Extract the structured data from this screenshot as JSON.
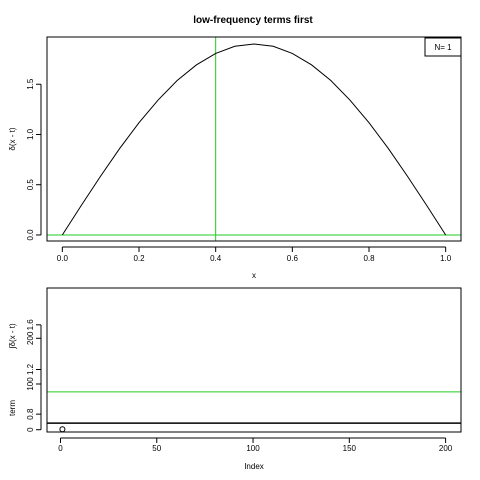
{
  "chart_data": [
    {
      "type": "line",
      "title": "low-frequency terms first",
      "xlabel": "x",
      "ylabel": "δ(x - t)",
      "xlim": [
        -0.04,
        1.04
      ],
      "ylim": [
        -0.06,
        1.97
      ],
      "xticks": [
        0.0,
        0.2,
        0.4,
        0.6,
        0.8,
        1.0
      ],
      "xtick_labels": [
        "0.0",
        "0.2",
        "0.4",
        "0.6",
        "0.8",
        "1.0"
      ],
      "yticks": [
        0.0,
        0.5,
        1.0,
        1.5
      ],
      "ytick_labels": [
        "0.0",
        "0.5",
        "1.0",
        "1.5"
      ],
      "series": [
        {
          "color": "#000000",
          "x": [
            0.0,
            0.05,
            0.1,
            0.15,
            0.2,
            0.25,
            0.3,
            0.35,
            0.4,
            0.45,
            0.5,
            0.55,
            0.6,
            0.65,
            0.7,
            0.75,
            0.8,
            0.85,
            0.9,
            0.95,
            1.0
          ],
          "y": [
            0.0,
            0.297,
            0.587,
            0.862,
            1.117,
            1.344,
            1.538,
            1.693,
            1.807,
            1.877,
            1.9,
            1.877,
            1.807,
            1.693,
            1.538,
            1.344,
            1.117,
            0.862,
            0.587,
            0.297,
            0.0
          ]
        }
      ],
      "reference_lines": [
        {
          "orientation": "vertical",
          "value": 0.4,
          "color": "#22cc22"
        },
        {
          "orientation": "horizontal",
          "value": 0.0,
          "color": "#22cc22"
        }
      ],
      "legend": {
        "text": "N= 1",
        "position": "top-right"
      },
      "grid": false
    },
    {
      "type": "line",
      "xlabel": "Index",
      "xlim": [
        -7,
        208
      ],
      "xticks": [
        0,
        50,
        100,
        150,
        200
      ],
      "xtick_labels": [
        "0",
        "50",
        "100",
        "150",
        "200"
      ],
      "upper_axis": {
        "ylabel": "∫δ(x - t)",
        "ylim": [
          0.64,
          1.93
        ],
        "yticks": [
          0.8,
          1.2,
          1.6
        ],
        "ytick_labels": [
          "0.8",
          "1.2",
          "1.6"
        ],
        "reference_lines": [
          {
            "orientation": "horizontal",
            "value": 1.0,
            "color": "#22cc22"
          },
          {
            "orientation": "horizontal",
            "value": 0.72,
            "color": "#000000"
          }
        ]
      },
      "lower_axis": {
        "ylabel": "term",
        "ylim": [
          -5,
          310
        ],
        "yticks": [
          0,
          100,
          200
        ],
        "ytick_labels": [
          "0",
          "100",
          "200"
        ],
        "points": [
          {
            "x": 1,
            "y": 1
          }
        ]
      },
      "grid": false
    }
  ]
}
